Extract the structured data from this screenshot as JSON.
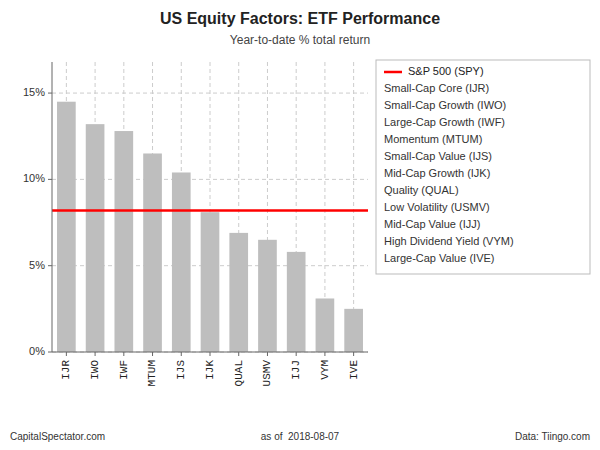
{
  "chart_data": {
    "type": "bar",
    "title": "US Equity Factors: ETF Performance",
    "subtitle": "Year-to-date % total return",
    "categories": [
      "IJR",
      "IWO",
      "IWF",
      "MTUM",
      "IJS",
      "IJK",
      "QUAL",
      "USMV",
      "IJJ",
      "VYM",
      "IVE"
    ],
    "values": [
      0.145,
      0.132,
      0.128,
      0.115,
      0.104,
      0.081,
      0.069,
      0.065,
      0.058,
      0.031,
      0.025
    ],
    "color": "#bebebe",
    "ylim": [
      0,
      0.168
    ],
    "yticks": [
      {
        "value": 0,
        "label": "0%"
      },
      {
        "value": 0.05,
        "label": "5%"
      },
      {
        "value": 0.1,
        "label": "10%"
      },
      {
        "value": 0.15,
        "label": "15%"
      }
    ],
    "grid": true,
    "reference_line": {
      "name": "S&P 500 (SPY)",
      "value": 0.082,
      "color": "#ff0000"
    },
    "key_columns": [
      [
        "Small-Cap Core (IJR)",
        "Small-Cap Growth (IWO)",
        "Large-Cap Growth (IWF)",
        "Momentum (MTUM)",
        "Small-Cap Value (IJS)",
        "Mid-Cap Growth (IJK)"
      ],
      [
        "Quality (QUAL)",
        "Low Volatility (USMV)",
        "Mid-Cap Value (IJJ)",
        "High Dividend Yield (VYM)",
        "Large-Cap Value (IVE)"
      ]
    ],
    "footer_left": "CapitalSpectator.com",
    "footer_center": "as of  2018-08-07",
    "footer_right": "Data: Tiingo.com"
  }
}
